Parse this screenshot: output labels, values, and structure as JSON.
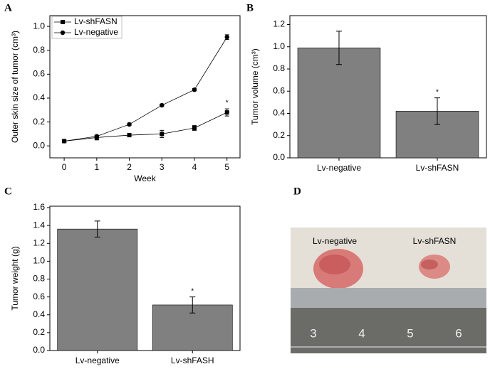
{
  "panel_labels": [
    "A",
    "B",
    "C",
    "D"
  ],
  "chart_data": [
    {
      "type": "line",
      "x_label": "Week",
      "y_label": "Outer skin size of tumor (cm³)",
      "x": [
        0,
        1,
        2,
        3,
        4,
        5
      ],
      "series": [
        {
          "name": "Lv-shFASN",
          "color": "#000000",
          "marker": "square",
          "values": [
            0.04,
            0.07,
            0.09,
            0.1,
            0.15,
            0.28
          ],
          "errors": [
            0.01,
            0.02,
            0.01,
            0.03,
            0.02,
            0.03
          ]
        },
        {
          "name": "Lv-negative",
          "color": "#000000",
          "marker": "circle",
          "values": [
            0.04,
            0.08,
            0.18,
            0.34,
            0.47,
            0.91
          ],
          "errors": [
            0.01,
            0.01,
            0.01,
            0.01,
            0.01,
            0.02
          ]
        }
      ],
      "annotation": "*",
      "xlim": [
        -0.44,
        5.4
      ],
      "ylim": [
        -0.1,
        1.09
      ],
      "xticks": [
        0,
        1,
        2,
        3,
        4,
        5
      ],
      "yticks": [
        {
          "value": 0,
          "label": "0.0"
        },
        0.2,
        0.4,
        0.6,
        0.8,
        {
          "value": 1,
          "label": "1.0"
        }
      ]
    },
    {
      "type": "bar",
      "y_label": "Tumor volume (cm³)",
      "color": "#808080",
      "categories": [
        "Lv-negative",
        "Lv-shFASN"
      ],
      "values": [
        0.99,
        0.42
      ],
      "errors": [
        0.15,
        0.12
      ],
      "annotation": "*",
      "ylim": [
        0,
        1.28
      ],
      "yticks": [
        {
          "value": 0,
          "label": "0.0"
        },
        0.2,
        0.4,
        0.6,
        0.8,
        {
          "value": 1,
          "label": "1.0"
        },
        1.2
      ]
    },
    {
      "type": "bar",
      "y_label": "Tumor weight (g)",
      "color": "#808080",
      "categories": [
        "Lv-negative",
        "Lv-shFASH"
      ],
      "values": [
        1.36,
        0.51
      ],
      "errors": [
        0.09,
        0.09
      ],
      "annotation": "*",
      "ylim": [
        0,
        1.616
      ],
      "yticks": [
        {
          "value": 0,
          "label": "0.0"
        },
        0.2,
        0.4,
        0.6,
        0.8,
        {
          "value": 1,
          "label": "1.0"
        },
        1.2,
        1.4,
        1.6
      ]
    }
  ],
  "photo": {
    "labels": [
      "Lv-negative",
      "Lv-shFASN"
    ],
    "ruler": [
      "3",
      "4",
      "5",
      "6"
    ]
  }
}
